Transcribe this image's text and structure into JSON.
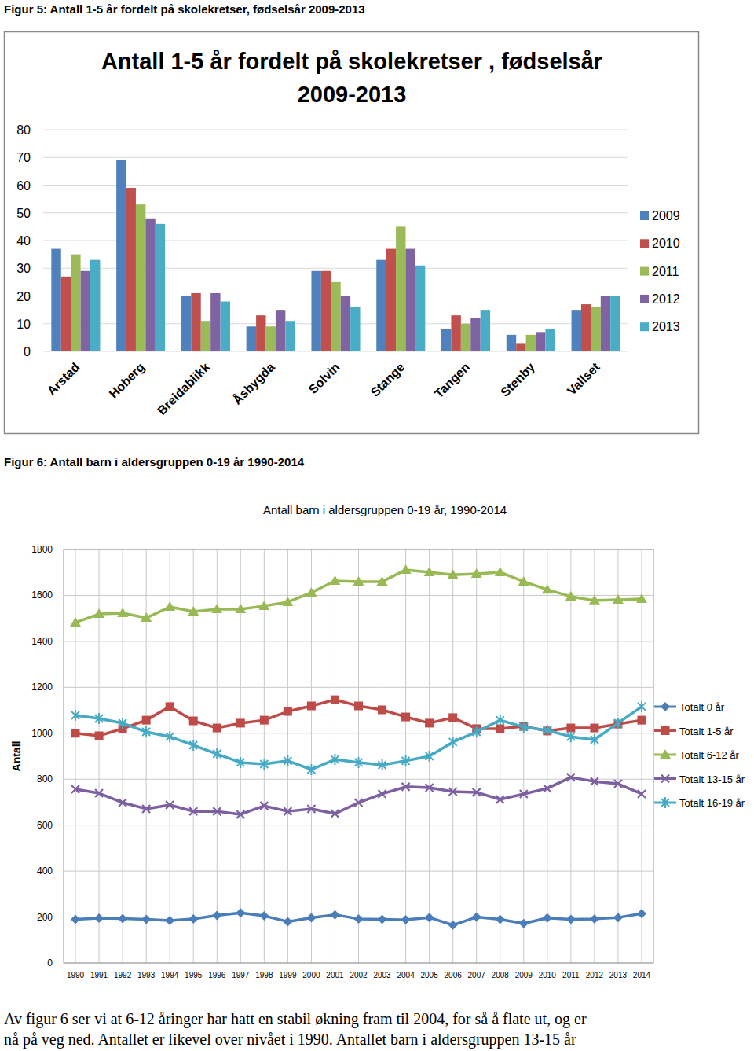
{
  "document": {
    "captions": [
      "Figur 5: Antall 1-5 år fordelt på skolekretser, fødselsår 2009-2013",
      "Figur 6: Antall barn i aldersgruppen 0-19 år 1990-2014"
    ],
    "paragraph_lines": [
      "Av figur 6 ser vi at 6-12 åringer har hatt en stabil økning fram til 2004, for så å flate ut, og er",
      "nå på veg ned. Antallet er likevel over nivået i 1990. Antallet barn i aldersgruppen 13-15 år"
    ]
  },
  "chart_data": [
    {
      "type": "bar",
      "title": "Antall 1-5 år fordelt på skolekretser , fødselsår 2009-2013",
      "categories": [
        "Arstad",
        "Hoberg",
        "Breidablikk",
        "Åsbygda",
        "Solvin",
        "Stange",
        "Tangen",
        "Stenby",
        "Vallset"
      ],
      "series": [
        {
          "name": "2009",
          "color": "#4f81bd",
          "values": [
            37,
            69,
            20,
            9,
            29,
            33,
            8,
            6,
            15
          ]
        },
        {
          "name": "2010",
          "color": "#c0504d",
          "values": [
            27,
            59,
            21,
            13,
            29,
            37,
            13,
            3,
            17
          ]
        },
        {
          "name": "2011",
          "color": "#9bbb59",
          "values": [
            35,
            53,
            11,
            9,
            25,
            45,
            10,
            6,
            16
          ]
        },
        {
          "name": "2012",
          "color": "#8064a2",
          "values": [
            29,
            48,
            21,
            15,
            20,
            37,
            12,
            7,
            20
          ]
        },
        {
          "name": "2013",
          "color": "#4bacc6",
          "values": [
            33,
            46,
            18,
            11,
            16,
            31,
            15,
            8,
            20
          ]
        }
      ],
      "ylim": [
        0,
        80
      ],
      "yticks": [
        0,
        10,
        20,
        30,
        40,
        50,
        60,
        70,
        80
      ],
      "grid": true,
      "legend": "right"
    },
    {
      "type": "line",
      "title": "Antall barn i aldersgruppen 0-19 år, 1990-2014",
      "y_label": "Antall",
      "categories": [
        "1990",
        "1991",
        "1992",
        "1993",
        "1994",
        "1995",
        "1996",
        "1997",
        "1998",
        "1999",
        "2000",
        "2001",
        "2002",
        "2003",
        "2004",
        "2005",
        "2006",
        "2007",
        "2008",
        "2009",
        "2010",
        "2011",
        "2012",
        "2013",
        "2014"
      ],
      "series": [
        {
          "name": "Totalt 0 år",
          "color": "#4a7ebb",
          "marker": "diamond",
          "values": [
            190,
            195,
            193,
            190,
            185,
            192,
            207,
            218,
            205,
            180,
            197,
            210,
            192,
            190,
            188,
            198,
            165,
            200,
            190,
            172,
            196,
            190,
            192,
            198,
            215
          ]
        },
        {
          "name": "Totalt 1-5 år",
          "color": "#be4b48",
          "marker": "square",
          "values": [
            1000,
            989,
            1020,
            1057,
            1116,
            1054,
            1023,
            1044,
            1057,
            1095,
            1119,
            1146,
            1119,
            1102,
            1071,
            1044,
            1068,
            1020,
            1020,
            1030,
            1010,
            1023,
            1023,
            1040,
            1057
          ]
        },
        {
          "name": "Totalt 6-12 år",
          "color": "#98b954",
          "marker": "triangle",
          "values": [
            1482,
            1519,
            1523,
            1502,
            1550,
            1530,
            1540,
            1540,
            1554,
            1571,
            1612,
            1663,
            1660,
            1660,
            1711,
            1701,
            1690,
            1694,
            1701,
            1660,
            1625,
            1595,
            1578,
            1581,
            1584
          ]
        },
        {
          "name": "Totalt 13-15 år",
          "color": "#7d60a0",
          "marker": "x",
          "values": [
            756,
            739,
            698,
            671,
            688,
            660,
            660,
            647,
            684,
            660,
            671,
            650,
            698,
            736,
            767,
            763,
            746,
            743,
            712,
            736,
            760,
            808,
            790,
            780,
            736
          ]
        },
        {
          "name": "Totalt 16-19 år",
          "color": "#46aac5",
          "marker": "star",
          "values": [
            1078,
            1064,
            1044,
            1006,
            985,
            948,
            910,
            873,
            866,
            880,
            842,
            886,
            873,
            862,
            880,
            900,
            962,
            1006,
            1057,
            1027,
            1013,
            985,
            972,
            1044,
            1116
          ]
        }
      ],
      "ylim": [
        0,
        1800
      ],
      "yticks": [
        0,
        200,
        400,
        600,
        800,
        1000,
        1200,
        1400,
        1600,
        1800
      ],
      "grid": true,
      "legend": "right"
    }
  ]
}
